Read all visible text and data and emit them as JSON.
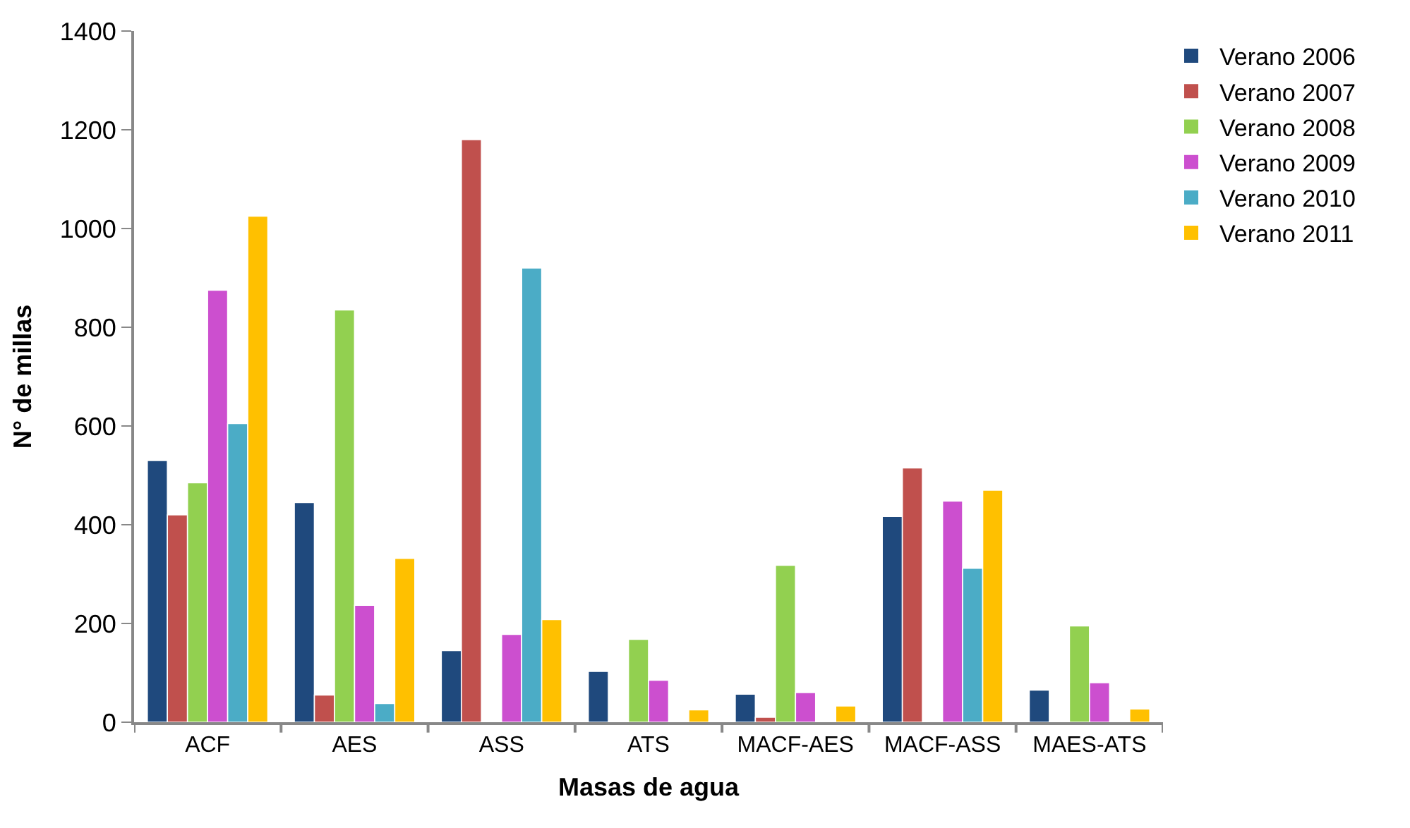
{
  "chart_data": {
    "type": "bar",
    "xlabel": "Masas de agua",
    "ylabel": "N° de millas",
    "categories": [
      "ACF",
      "AES",
      "ASS",
      "ATS",
      "MACF-AES",
      "MACF-ASS",
      "MAES-ATS"
    ],
    "series": [
      {
        "name": "Verano 2006",
        "color": "#1f497d",
        "values": [
          530,
          445,
          145,
          103,
          57,
          417,
          65
        ]
      },
      {
        "name": "Verano 2007",
        "color": "#c0504d",
        "values": [
          420,
          55,
          1180,
          null,
          10,
          515,
          null
        ]
      },
      {
        "name": "Verano 2008",
        "color": "#92d050",
        "values": [
          485,
          835,
          null,
          168,
          318,
          null,
          195
        ]
      },
      {
        "name": "Verano 2009",
        "color": "#cc4fcf",
        "values": [
          875,
          237,
          178,
          85,
          60,
          448,
          80
        ]
      },
      {
        "name": "Verano 2010",
        "color": "#4bacc6",
        "values": [
          605,
          38,
          920,
          null,
          null,
          312,
          null
        ]
      },
      {
        "name": "Verano 2011",
        "color": "#ffc000",
        "values": [
          1025,
          332,
          208,
          25,
          33,
          470,
          27
        ]
      }
    ],
    "ylim": [
      0,
      1400
    ],
    "yticks": [
      0,
      200,
      400,
      600,
      800,
      1000,
      1200,
      1400
    ],
    "legend": "right"
  }
}
